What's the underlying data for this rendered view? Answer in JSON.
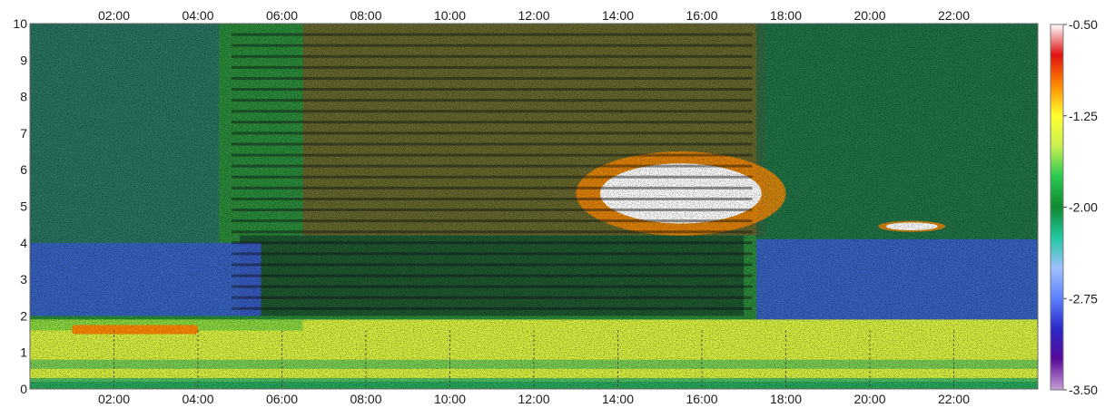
{
  "chart_data": {
    "type": "heatmap",
    "title": "",
    "xlabel": "",
    "ylabel": "",
    "x_ticks": [
      "02:00",
      "04:00",
      "06:00",
      "08:00",
      "10:00",
      "12:00",
      "14:00",
      "16:00",
      "18:00",
      "20:00",
      "22:00"
    ],
    "x_tick_hours": [
      2,
      4,
      6,
      8,
      10,
      12,
      14,
      16,
      18,
      20,
      22
    ],
    "xlim_hours": [
      0,
      24
    ],
    "y_ticks": [
      "0",
      "1",
      "2",
      "3",
      "4",
      "5",
      "6",
      "7",
      "8",
      "9",
      "10"
    ],
    "ylim": [
      0,
      10
    ],
    "colorbar": {
      "ticks": [
        "-0.50",
        "-1.25",
        "-2.00",
        "-2.75",
        "-3.50"
      ],
      "range": [
        -3.5,
        -0.5
      ],
      "colors": [
        "#ffffff",
        "#e01010",
        "#ff8a00",
        "#ffff30",
        "#c8f050",
        "#28c850",
        "#108a30",
        "#20c8a0",
        "#a0c0ff",
        "#5a82ff",
        "#2a28c8",
        "#5a0a9a",
        "#c8a0d8"
      ]
    },
    "features": [
      {
        "name": "boundary layer",
        "start_hour": 0,
        "end_hour": 24,
        "base_km": 0.2,
        "top_km": 1.9,
        "level": -1.4
      },
      {
        "name": "elevated layer",
        "start_hour": 1.0,
        "end_hour": 4.0,
        "base_km": 1.5,
        "top_km": 1.75,
        "level": -0.9
      },
      {
        "name": "cloud",
        "start_hour": 13.0,
        "end_hour": 18.0,
        "base_km": 4.2,
        "top_km": 6.5,
        "level": -0.5
      },
      {
        "name": "cloud",
        "start_hour": 20.2,
        "end_hour": 21.8,
        "base_km": 4.3,
        "top_km": 4.6,
        "level": -0.5
      }
    ]
  }
}
